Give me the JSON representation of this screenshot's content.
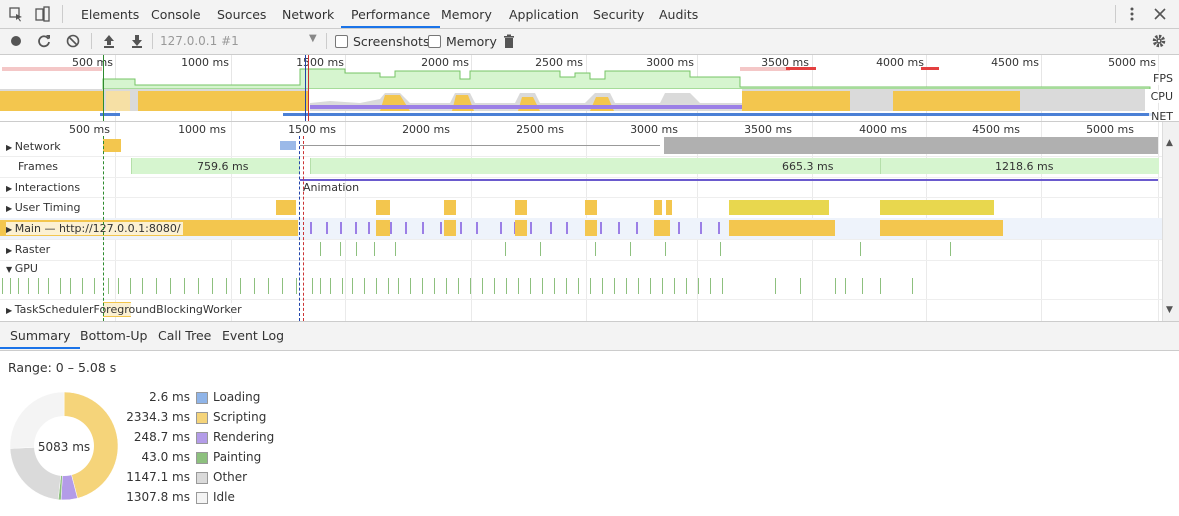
{
  "top_tabs": [
    "Elements",
    "Console",
    "Sources",
    "Network",
    "Performance",
    "Memory",
    "Application",
    "Security",
    "Audits"
  ],
  "active_tab": "Performance",
  "toolbar": {
    "profile_select": "127.0.0.1 #1",
    "screenshots_label": "Screenshots",
    "memory_label": "Memory"
  },
  "overview": {
    "ticks": [
      "500 ms",
      "1000 ms",
      "1500 ms",
      "2000 ms",
      "2500 ms",
      "3000 ms",
      "3500 ms",
      "4000 ms",
      "4500 ms",
      "5000 ms"
    ],
    "labels": {
      "fps": "FPS",
      "cpu": "CPU",
      "net": "NET"
    }
  },
  "main_ticks": [
    "500 ms",
    "1000 ms",
    "1500 ms",
    "2000 ms",
    "2500 ms",
    "3000 ms",
    "3500 ms",
    "4000 ms",
    "4500 ms",
    "5000 ms"
  ],
  "rows": {
    "network": "Network",
    "frames": "Frames",
    "interactions": "Interactions",
    "user_timing": "User Timing",
    "main": "Main — http://127.0.0.1:8080/",
    "raster": "Raster",
    "gpu": "GPU",
    "task_scheduler": "TaskSchedulerForegroundBlockingWorker"
  },
  "frames_labels": [
    "759.6 ms",
    "665.3 ms",
    "1218.6 ms"
  ],
  "animation_label": "Animation",
  "bottom_tabs": [
    "Summary",
    "Bottom-Up",
    "Call Tree",
    "Event Log"
  ],
  "summary": {
    "range": "Range: 0 – 5.08 s",
    "total": "5083 ms",
    "items": [
      {
        "value": "2.6 ms",
        "name": "Loading",
        "color": "#8fb4e8"
      },
      {
        "value": "2334.3 ms",
        "name": "Scripting",
        "color": "#f5d47a"
      },
      {
        "value": "248.7 ms",
        "name": "Rendering",
        "color": "#b39ce8"
      },
      {
        "value": "43.0 ms",
        "name": "Painting",
        "color": "#8dc07e"
      },
      {
        "value": "1147.1 ms",
        "name": "Other",
        "color": "#dadada"
      },
      {
        "value": "1307.8 ms",
        "name": "Idle",
        "color": "#f4f4f4"
      }
    ],
    "chart_data": {
      "type": "pie",
      "categories": [
        "Loading",
        "Scripting",
        "Rendering",
        "Painting",
        "Other",
        "Idle"
      ],
      "values": [
        2.6,
        2334.3,
        248.7,
        43.0,
        1147.1,
        1307.8
      ]
    }
  }
}
